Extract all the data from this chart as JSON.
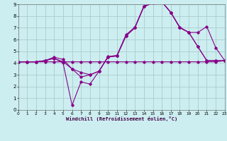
{
  "xlabel": "Windchill (Refroidissement éolien,°C)",
  "xlim": [
    0,
    23
  ],
  "ylim": [
    0,
    9
  ],
  "xticks": [
    0,
    1,
    2,
    3,
    4,
    5,
    6,
    7,
    8,
    9,
    10,
    11,
    12,
    13,
    14,
    15,
    16,
    17,
    18,
    19,
    20,
    21,
    22,
    23
  ],
  "yticks": [
    0,
    1,
    2,
    3,
    4,
    5,
    6,
    7,
    8,
    9
  ],
  "bg_color": "#cceef0",
  "grid_color": "#aacccc",
  "line_color": "#880088",
  "line1_x": [
    0,
    1,
    2,
    3,
    4,
    5,
    6,
    7,
    8,
    9,
    10,
    11,
    12,
    13,
    14,
    15,
    16,
    17,
    18,
    19,
    20,
    21,
    22,
    23
  ],
  "line1_y": [
    4.1,
    4.1,
    4.1,
    4.1,
    4.1,
    4.1,
    4.1,
    4.1,
    4.1,
    4.1,
    4.1,
    4.1,
    4.1,
    4.1,
    4.1,
    4.1,
    4.1,
    4.1,
    4.1,
    4.1,
    4.1,
    4.1,
    4.1,
    4.2
  ],
  "line2_x": [
    0,
    1,
    2,
    3,
    4,
    5,
    6,
    7,
    8,
    9,
    10,
    11,
    12,
    13,
    14,
    15,
    16,
    17,
    18,
    19,
    20,
    21,
    22,
    23
  ],
  "line2_y": [
    4.1,
    4.1,
    4.1,
    4.2,
    4.4,
    4.1,
    3.5,
    3.2,
    3.0,
    3.3,
    4.5,
    4.6,
    6.3,
    7.0,
    8.8,
    9.1,
    9.2,
    8.3,
    7.0,
    6.6,
    5.4,
    4.2,
    4.2,
    4.2
  ],
  "line3_x": [
    0,
    1,
    2,
    3,
    4,
    5,
    6,
    7,
    8,
    9,
    10,
    11,
    12,
    13,
    14,
    15,
    16,
    17,
    18,
    19,
    20,
    21,
    22,
    23
  ],
  "line3_y": [
    4.1,
    4.1,
    4.1,
    4.2,
    4.4,
    4.0,
    0.4,
    2.4,
    2.2,
    3.3,
    4.5,
    4.6,
    6.3,
    7.0,
    8.8,
    9.1,
    9.2,
    8.3,
    7.0,
    6.6,
    5.4,
    4.2,
    4.2,
    4.2
  ],
  "line4_x": [
    0,
    1,
    2,
    3,
    4,
    5,
    6,
    7,
    8,
    9,
    10,
    11,
    12,
    13,
    14,
    15,
    16,
    17,
    18,
    19,
    20,
    21,
    22,
    23
  ],
  "line4_y": [
    4.1,
    4.1,
    4.1,
    4.2,
    4.5,
    4.3,
    3.5,
    2.8,
    3.0,
    3.3,
    4.55,
    4.65,
    6.4,
    7.05,
    8.85,
    9.1,
    9.2,
    8.3,
    7.05,
    6.6,
    6.6,
    7.1,
    5.3,
    4.2
  ],
  "lw": 0.8,
  "ms": 1.8
}
